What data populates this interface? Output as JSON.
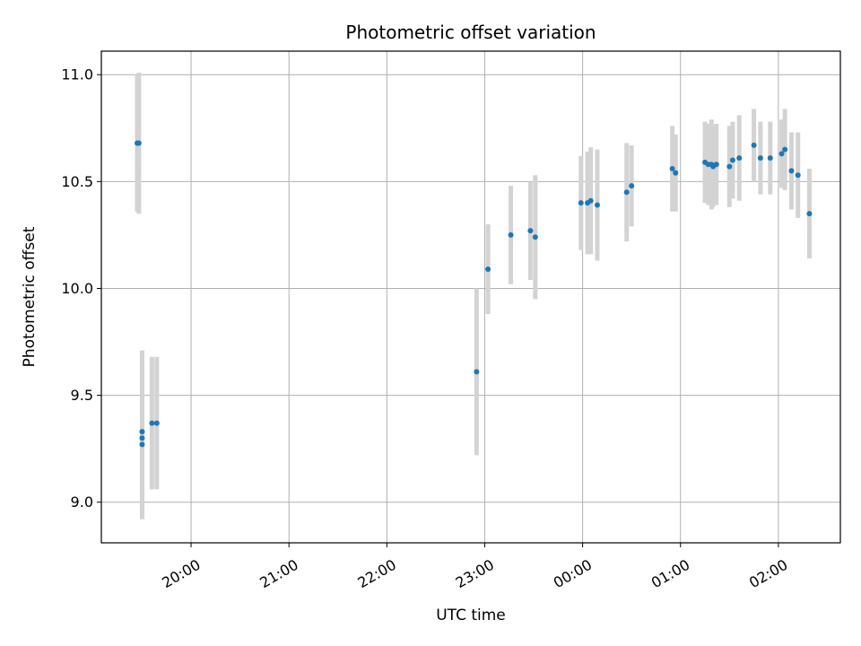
{
  "chart_data": {
    "type": "scatter",
    "title": "Photometric offset variation",
    "xlabel": "UTC time",
    "ylabel": "Photometric offset",
    "x_ticks": [
      "20:00",
      "21:00",
      "22:00",
      "23:00",
      "00:00",
      "01:00",
      "02:00"
    ],
    "y_ticks": [
      "9.0",
      "9.5",
      "10.0",
      "10.5",
      "11.0"
    ],
    "y_tick_values": [
      9.0,
      9.5,
      10.0,
      10.5,
      11.0
    ],
    "xlim": [
      "19:05",
      "02:38"
    ],
    "ylim": [
      8.81,
      11.11
    ],
    "grid": true,
    "series": [
      {
        "marker_color": "#1f77b4",
        "errorbar_color": "#d3d3d3",
        "points": [
          {
            "x": "19:27",
            "y": 10.68,
            "yerr": 0.32
          },
          {
            "x": "19:28",
            "y": 10.68,
            "yerr": 0.33
          },
          {
            "x": "19:30",
            "y": 9.33,
            "yerr": 0.38
          },
          {
            "x": "19:30",
            "y": 9.3,
            "yerr": 0.36
          },
          {
            "x": "19:30",
            "y": 9.27,
            "yerr": 0.35
          },
          {
            "x": "19:36",
            "y": 9.37,
            "yerr": 0.31
          },
          {
            "x": "19:39",
            "y": 9.37,
            "yerr": 0.31
          },
          {
            "x": "22:55",
            "y": 9.61,
            "yerr": 0.39
          },
          {
            "x": "23:02",
            "y": 10.09,
            "yerr": 0.21
          },
          {
            "x": "23:16",
            "y": 10.25,
            "yerr": 0.23
          },
          {
            "x": "23:28",
            "y": 10.27,
            "yerr": 0.23
          },
          {
            "x": "23:31",
            "y": 10.24,
            "yerr": 0.29
          },
          {
            "x": "23:59",
            "y": 10.4,
            "yerr": 0.22
          },
          {
            "x": "00:03",
            "y": 10.4,
            "yerr": 0.24
          },
          {
            "x": "00:05",
            "y": 10.41,
            "yerr": 0.25
          },
          {
            "x": "00:09",
            "y": 10.39,
            "yerr": 0.26
          },
          {
            "x": "00:27",
            "y": 10.45,
            "yerr": 0.23
          },
          {
            "x": "00:30",
            "y": 10.48,
            "yerr": 0.19
          },
          {
            "x": "00:55",
            "y": 10.56,
            "yerr": 0.2
          },
          {
            "x": "00:57",
            "y": 10.54,
            "yerr": 0.18
          },
          {
            "x": "01:15",
            "y": 10.59,
            "yerr": 0.19
          },
          {
            "x": "01:17",
            "y": 10.58,
            "yerr": 0.19
          },
          {
            "x": "01:19",
            "y": 10.58,
            "yerr": 0.21
          },
          {
            "x": "01:20",
            "y": 10.57,
            "yerr": 0.19
          },
          {
            "x": "01:22",
            "y": 10.58,
            "yerr": 0.19
          },
          {
            "x": "01:30",
            "y": 10.57,
            "yerr": 0.19
          },
          {
            "x": "01:32",
            "y": 10.6,
            "yerr": 0.18
          },
          {
            "x": "01:36",
            "y": 10.61,
            "yerr": 0.2
          },
          {
            "x": "01:45",
            "y": 10.67,
            "yerr": 0.17
          },
          {
            "x": "01:49",
            "y": 10.61,
            "yerr": 0.17
          },
          {
            "x": "01:55",
            "y": 10.61,
            "yerr": 0.17
          },
          {
            "x": "02:02",
            "y": 10.63,
            "yerr": 0.16
          },
          {
            "x": "02:04",
            "y": 10.65,
            "yerr": 0.19
          },
          {
            "x": "02:08",
            "y": 10.55,
            "yerr": 0.18
          },
          {
            "x": "02:12",
            "y": 10.53,
            "yerr": 0.2
          },
          {
            "x": "02:19",
            "y": 10.35,
            "yerr": 0.21
          }
        ]
      }
    ]
  }
}
